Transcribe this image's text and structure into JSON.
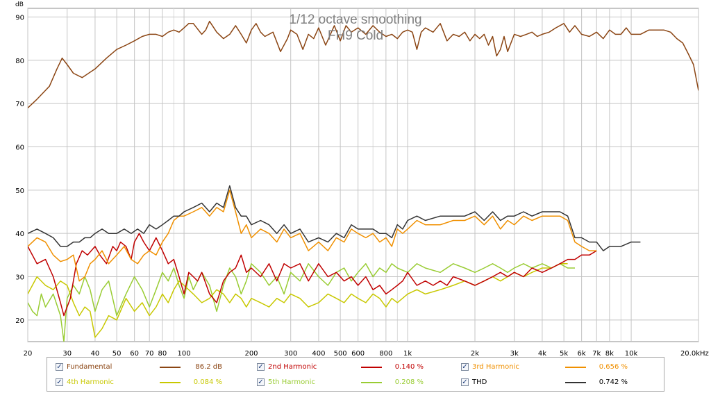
{
  "chart_data": {
    "type": "line",
    "title": "1/12 octave smoothing",
    "subtitle": "FH9 Cold",
    "ylabel": "dB",
    "x_unit": "Hz",
    "x_scale": "log",
    "xlim": [
      20,
      20000
    ],
    "ylim": [
      15,
      92
    ],
    "grid": true,
    "x_ticks": [
      {
        "v": 20,
        "label": "20"
      },
      {
        "v": 30,
        "label": "30"
      },
      {
        "v": 40,
        "label": "40"
      },
      {
        "v": 50,
        "label": "50"
      },
      {
        "v": 60,
        "label": "60"
      },
      {
        "v": 70,
        "label": "70"
      },
      {
        "v": 80,
        "label": "80"
      },
      {
        "v": 100,
        "label": "100"
      },
      {
        "v": 200,
        "label": "200"
      },
      {
        "v": 300,
        "label": "300"
      },
      {
        "v": 400,
        "label": "400"
      },
      {
        "v": 500,
        "label": "500"
      },
      {
        "v": 600,
        "label": "600"
      },
      {
        "v": 800,
        "label": "800"
      },
      {
        "v": 1000,
        "label": "1k"
      },
      {
        "v": 2000,
        "label": "2k"
      },
      {
        "v": 3000,
        "label": "3k"
      },
      {
        "v": 4000,
        "label": "4k"
      },
      {
        "v": 5000,
        "label": "5k"
      },
      {
        "v": 6000,
        "label": "6k"
      },
      {
        "v": 7000,
        "label": "7k"
      },
      {
        "v": 8000,
        "label": "8k"
      },
      {
        "v": 10000,
        "label": "10k"
      },
      {
        "v": 20000,
        "label": "20.0k"
      }
    ],
    "y_ticks": [
      20,
      30,
      40,
      50,
      60,
      70,
      80,
      90
    ],
    "series": [
      {
        "name": "Fundamental",
        "color": "#8b4513",
        "value": "86.2 dB",
        "x": [
          20,
          22,
          25,
          27,
          28.5,
          30,
          32,
          35,
          40,
          45,
          50,
          55,
          60,
          65,
          70,
          75,
          80,
          85,
          90,
          95,
          100,
          105,
          110,
          120,
          125,
          130,
          140,
          150,
          160,
          170,
          180,
          190,
          200,
          210,
          220,
          230,
          250,
          270,
          290,
          300,
          320,
          340,
          360,
          380,
          400,
          430,
          470,
          500,
          530,
          560,
          600,
          650,
          700,
          750,
          800,
          850,
          900,
          950,
          1000,
          1050,
          1100,
          1150,
          1200,
          1300,
          1400,
          1500,
          1600,
          1700,
          1800,
          1900,
          2000,
          2100,
          2200,
          2300,
          2400,
          2500,
          2600,
          2700,
          2800,
          3000,
          3200,
          3400,
          3600,
          3800,
          4000,
          4300,
          4600,
          5000,
          5300,
          5600,
          6000,
          6500,
          7000,
          7500,
          8000,
          8500,
          9000,
          9500,
          10000,
          11000,
          12000,
          13000,
          14000,
          15000,
          16000,
          17000,
          18000,
          19000,
          20000
        ],
        "y": [
          69,
          71,
          74,
          78,
          80.5,
          79,
          77,
          76,
          78,
          80.5,
          82.5,
          83.5,
          84.5,
          85.5,
          86,
          86,
          85.5,
          86.5,
          87,
          86.5,
          87.5,
          88.5,
          88.5,
          86,
          87,
          89,
          86.5,
          85,
          86,
          88,
          86,
          84,
          87,
          88.5,
          86.5,
          85.5,
          86.5,
          82,
          85,
          87,
          86,
          82.5,
          86,
          85,
          87.5,
          83.5,
          88,
          84.5,
          88,
          86.5,
          87.5,
          86,
          88,
          86.5,
          85.5,
          86,
          85,
          86.5,
          87,
          86.5,
          82.5,
          86.5,
          87.5,
          86.5,
          88.5,
          84.5,
          86,
          85.5,
          86.5,
          84.5,
          86,
          85,
          86,
          83.5,
          85.5,
          81,
          82.5,
          85.5,
          82,
          86,
          85.5,
          86,
          86.5,
          85.5,
          86,
          86.5,
          87.5,
          88.5,
          86.5,
          88,
          86,
          85.5,
          86.5,
          85,
          87,
          86,
          86,
          87.5,
          86,
          86,
          87,
          87,
          87,
          86.5,
          85,
          84,
          81.5,
          79,
          73
        ]
      },
      {
        "name": "2nd Harmonic",
        "color": "#c00000",
        "value": "0.140 %",
        "x": [
          20,
          22,
          24,
          26,
          28,
          29,
          31,
          33,
          35,
          37,
          40,
          42,
          45,
          48,
          50,
          52,
          55,
          58,
          60,
          63,
          66,
          70,
          75,
          80,
          85,
          90,
          95,
          100,
          105,
          110,
          115,
          120,
          130,
          140,
          150,
          160,
          170,
          180,
          190,
          200,
          220,
          240,
          260,
          280,
          300,
          330,
          360,
          400,
          440,
          480,
          520,
          560,
          600,
          650,
          700,
          750,
          800,
          850,
          900,
          950,
          1000,
          1100,
          1200,
          1300,
          1400,
          1500,
          1600,
          1800,
          2000,
          2200,
          2400,
          2600,
          2800,
          3000,
          3300,
          3600,
          4000,
          4400,
          4800,
          5200,
          5600,
          6000,
          6500,
          7000
        ],
        "y": [
          37,
          33,
          34,
          30,
          24,
          21,
          25,
          33,
          36,
          35,
          37,
          35,
          33,
          37,
          36,
          38,
          37,
          34,
          38,
          40,
          38,
          36,
          39,
          36,
          33,
          34,
          30,
          26,
          31,
          30,
          29,
          31,
          26,
          24,
          29,
          31,
          32,
          35,
          31,
          32,
          30,
          33,
          29,
          33,
          32,
          33,
          29,
          33,
          30,
          31,
          29,
          30,
          28,
          30,
          27,
          28,
          26,
          27,
          28,
          29,
          31,
          28,
          29,
          28,
          29,
          28,
          30,
          29,
          28,
          29,
          30,
          31,
          30,
          31,
          30,
          32,
          31,
          32,
          33,
          34,
          34,
          35,
          35,
          36
        ]
      },
      {
        "name": "3rd Harmonic",
        "color": "#f09000",
        "value": "0.656 %",
        "x": [
          20,
          22,
          24,
          26,
          28,
          30,
          32,
          34,
          36,
          38,
          40,
          43,
          46,
          50,
          54,
          58,
          62,
          66,
          70,
          75,
          80,
          85,
          90,
          95,
          100,
          110,
          120,
          130,
          140,
          150,
          160,
          170,
          180,
          190,
          200,
          220,
          240,
          260,
          280,
          300,
          330,
          360,
          400,
          440,
          480,
          520,
          560,
          600,
          650,
          700,
          750,
          800,
          850,
          900,
          950,
          1000,
          1100,
          1200,
          1400,
          1600,
          1800,
          2000,
          2200,
          2400,
          2600,
          2800,
          3000,
          3300,
          3600,
          4000,
          4400,
          4800,
          5200,
          5600,
          6000,
          6500,
          7000
        ],
        "y": [
          37,
          39,
          38,
          35,
          33.5,
          34,
          35,
          29,
          30,
          33,
          34,
          36,
          33,
          35,
          37,
          34,
          33,
          35,
          36,
          35,
          38,
          40,
          43,
          44,
          44,
          45,
          46,
          44,
          46,
          45,
          50,
          45,
          40,
          42,
          39,
          41,
          40,
          38,
          41,
          39,
          40,
          36,
          38,
          36,
          39,
          38,
          41,
          40,
          39,
          40,
          38,
          39,
          37,
          41,
          40,
          41,
          43,
          42,
          42,
          43,
          43,
          44,
          42,
          44,
          41,
          43,
          42,
          44,
          43,
          44,
          44,
          44,
          43,
          38,
          37,
          36,
          36
        ]
      },
      {
        "name": "4th Harmonic",
        "color": "#c8c800",
        "value": "0.084 %",
        "x": [
          20,
          22,
          24,
          26,
          28,
          30,
          32,
          34,
          36,
          38,
          40,
          43,
          46,
          50,
          55,
          60,
          65,
          70,
          75,
          80,
          85,
          90,
          95,
          100,
          110,
          120,
          130,
          140,
          150,
          160,
          170,
          180,
          190,
          200,
          220,
          240,
          260,
          280,
          300,
          330,
          360,
          400,
          440,
          480,
          520,
          560,
          600,
          650,
          700,
          750,
          800,
          850,
          900,
          1000,
          1100,
          1200,
          1400,
          1600,
          1800,
          2000,
          2200,
          2400,
          2600,
          2800,
          3000,
          3300,
          3600,
          4000,
          4400,
          4800,
          5200
        ],
        "y": [
          26,
          30,
          28,
          27,
          29,
          28,
          24,
          21,
          23,
          22,
          16,
          18,
          21,
          20,
          25,
          22,
          24,
          21,
          23,
          26,
          24,
          27,
          29,
          28,
          26,
          24,
          25,
          27,
          26,
          24,
          26,
          25,
          23,
          25,
          24,
          23,
          25,
          24,
          26,
          25,
          23,
          24,
          26,
          25,
          24,
          26,
          25,
          24,
          26,
          25,
          23,
          25,
          24,
          26,
          27,
          26,
          27,
          28,
          29,
          28,
          29,
          30,
          29,
          30,
          31,
          30,
          31,
          32,
          32,
          33,
          33
        ]
      },
      {
        "name": "5th Harmonic",
        "color": "#99cc33",
        "value": "0.208 %",
        "x": [
          20,
          21,
          22,
          23,
          24,
          26,
          28,
          29,
          30,
          32,
          34,
          36,
          38,
          40,
          43,
          46,
          50,
          55,
          60,
          65,
          70,
          75,
          80,
          85,
          90,
          95,
          100,
          105,
          110,
          120,
          130,
          140,
          150,
          160,
          170,
          180,
          190,
          200,
          220,
          240,
          260,
          280,
          300,
          330,
          360,
          400,
          440,
          480,
          520,
          560,
          600,
          650,
          700,
          750,
          800,
          850,
          900,
          1000,
          1100,
          1200,
          1400,
          1600,
          1800,
          2000,
          2200,
          2400,
          2600,
          2800,
          3000,
          3300,
          3600,
          4000,
          4400,
          4800,
          5200,
          5600
        ],
        "y": [
          24,
          22,
          21,
          26,
          23,
          26,
          21,
          15,
          25,
          28,
          26,
          30,
          27,
          22,
          27,
          29,
          21,
          26,
          30,
          27,
          23,
          27,
          31,
          29,
          32,
          28,
          25,
          30,
          27,
          31,
          28,
          22,
          28,
          32,
          30,
          26,
          29,
          33,
          31,
          28,
          30,
          26,
          31,
          29,
          33,
          30,
          28,
          31,
          32,
          29,
          31,
          33,
          30,
          32,
          31,
          33,
          32,
          31,
          33,
          32,
          31,
          33,
          32,
          31,
          32,
          33,
          32,
          31,
          32,
          33,
          32,
          33,
          32,
          33,
          32,
          32
        ]
      },
      {
        "name": "THD",
        "color": "#333333",
        "value": "0.742 %",
        "x": [
          20,
          22,
          24,
          26,
          28,
          30,
          32,
          34,
          36,
          38,
          40,
          43,
          46,
          50,
          54,
          58,
          62,
          66,
          70,
          75,
          80,
          85,
          90,
          95,
          100,
          110,
          120,
          130,
          140,
          150,
          160,
          170,
          180,
          190,
          200,
          220,
          240,
          260,
          280,
          300,
          330,
          360,
          400,
          440,
          480,
          520,
          560,
          600,
          650,
          700,
          750,
          800,
          850,
          900,
          950,
          1000,
          1100,
          1200,
          1400,
          1600,
          1800,
          2000,
          2200,
          2400,
          2600,
          2800,
          3000,
          3300,
          3600,
          4000,
          4400,
          4800,
          5200,
          5600,
          6000,
          6500,
          7000,
          7500,
          8000,
          9000,
          10000,
          11000
        ],
        "y": [
          40,
          41,
          40,
          39,
          37,
          37,
          38,
          38,
          39,
          39,
          40,
          41,
          40,
          40,
          41,
          40,
          41,
          40,
          42,
          41,
          42,
          43,
          44,
          44,
          45,
          46,
          47,
          45,
          47,
          46,
          51,
          46,
          44,
          44,
          42,
          43,
          42,
          40,
          42,
          40,
          41,
          38,
          39,
          38,
          40,
          39,
          42,
          41,
          41,
          41,
          40,
          40,
          39,
          42,
          41,
          43,
          44,
          43,
          44,
          44,
          44,
          45,
          43,
          45,
          43,
          44,
          44,
          45,
          44,
          45,
          45,
          45,
          44,
          39,
          39,
          38,
          38,
          36,
          37,
          37,
          38,
          38
        ]
      }
    ]
  }
}
